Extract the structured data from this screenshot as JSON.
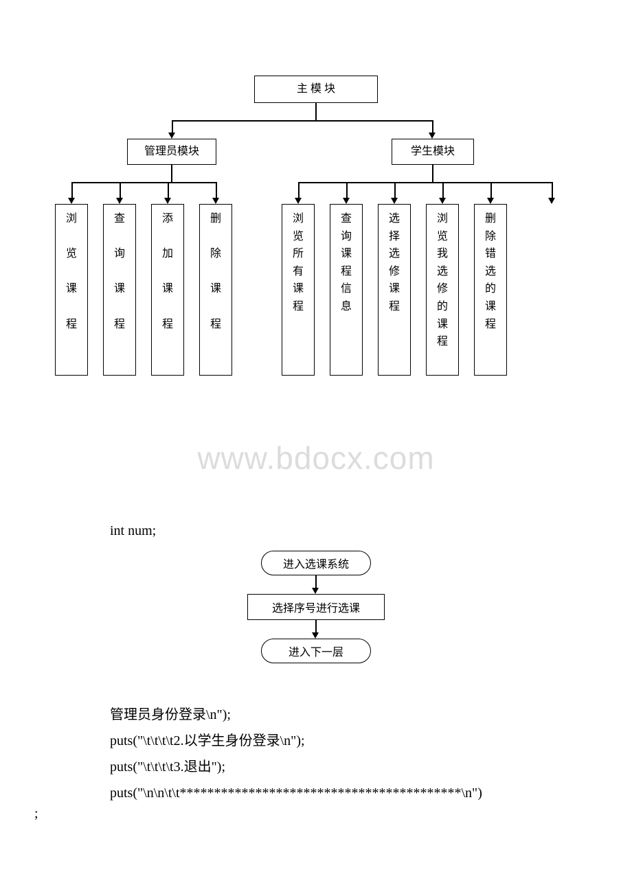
{
  "tree": {
    "root": "主 模 块",
    "level2": {
      "admin": "管理员模块",
      "student": "学生模块"
    },
    "admin_leaves": [
      "浏\n\n览\n\n课\n\n程",
      "查\n\n询\n\n课\n\n程",
      "添\n\n加\n\n课\n\n程",
      "删\n\n除\n\n课\n\n程"
    ],
    "student_leaves": [
      "浏\n览\n所\n有\n课\n程",
      "查\n询\n课\n程\n信\n息",
      "选\n择\n选\n修\n课\n程",
      "浏\n览\n我\n选\n修\n的\n课\n程",
      "删\n除\n错\n选\n的\n课\n程"
    ],
    "node_border": "#000000",
    "node_bg": "#ffffff",
    "font_size": 16
  },
  "watermark": "www.bdocx.com",
  "flowchart": {
    "n1": "进入选课系统",
    "n2": "选择序号进行选课",
    "n3": "进入下一层"
  },
  "code": {
    "line0": "int num;",
    "line1": "管理员身份登录\\n\");",
    "line2": "puts(\"\\t\\t\\t\\t2.以学生身份登录\\n\");",
    "line3": "puts(\"\\t\\t\\t\\t3.退出\");",
    "line4": "puts(\"\\n\\n\\t\\t*****************************************\\n\")",
    "line5": ";"
  },
  "colors": {
    "watermark": "#dcdcdc",
    "text": "#000000",
    "bg": "#ffffff"
  }
}
